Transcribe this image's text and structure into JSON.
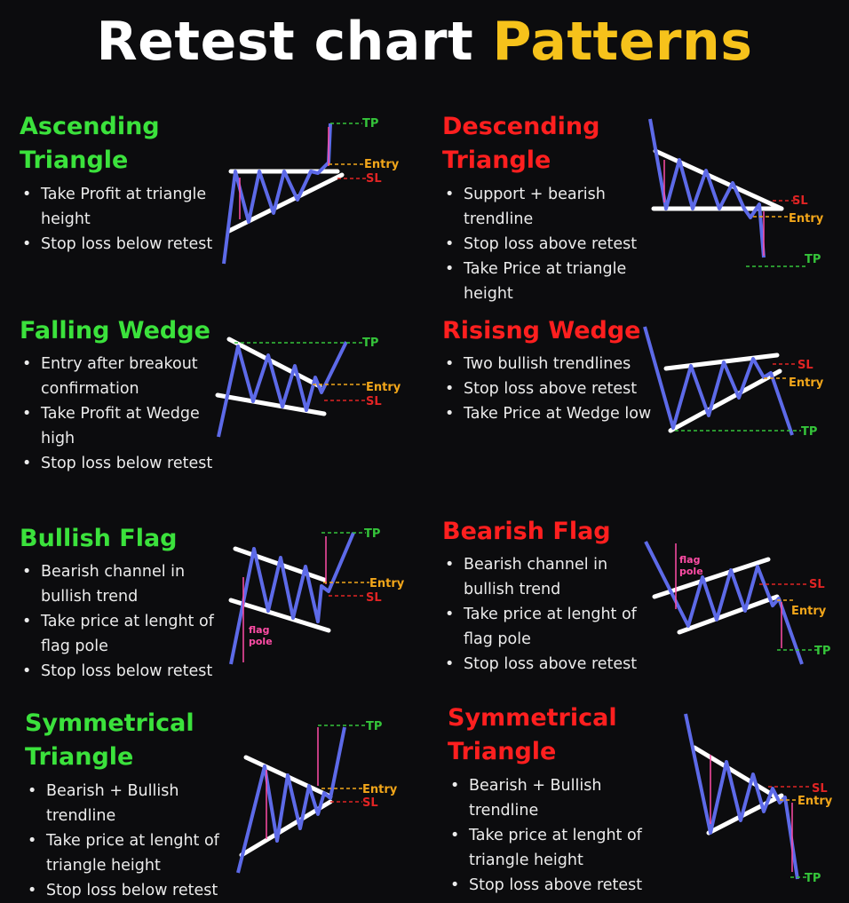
{
  "title": {
    "part1": "Retest chart",
    "part2": "Patterns"
  },
  "colors": {
    "background": "#0c0c0e",
    "title_white": "#ffffff",
    "title_yellow": "#f6c21b",
    "bullish_title": "#3be23c",
    "bearish_title": "#ff1f1f",
    "price_line": "#5d6ae8",
    "trendline": "#ffffff",
    "tp": "#35c43a",
    "entry": "#f2a61a",
    "sl": "#e02424",
    "measure_arrow": "#ff4da6"
  },
  "labels": {
    "tp": "TP",
    "entry": "Entry",
    "sl": "SL",
    "flag_pole_1": "flag",
    "flag_pole_2": "pole"
  },
  "patterns": [
    {
      "name_line1": "Ascending",
      "name_line2": "Triangle",
      "bias": "bullish",
      "bullets": [
        "Take Profit at triangle height",
        "Stop loss below retest"
      ]
    },
    {
      "name_line1": "Descending",
      "name_line2": "Triangle",
      "bias": "bearish",
      "bullets": [
        "Support + bearish trendline",
        "Stop loss above retest",
        "Take Price at triangle height"
      ]
    },
    {
      "name_line1": "Falling Wedge",
      "name_line2": "",
      "bias": "bullish",
      "bullets": [
        "Entry after breakout confirmation",
        "Take Profit at Wedge high",
        "Stop loss below retest"
      ]
    },
    {
      "name_line1": "Risisng Wedge",
      "name_line2": "",
      "bias": "bearish",
      "bullets": [
        "Two bullish trendlines",
        "Stop loss above retest",
        "Take Price at Wedge low"
      ]
    },
    {
      "name_line1": "Bullish Flag",
      "name_line2": "",
      "bias": "bullish",
      "bullets": [
        "Bearish channel in bullish trend",
        "Take price at lenght of flag pole",
        "Stop loss below retest"
      ]
    },
    {
      "name_line1": "Bearish Flag",
      "name_line2": "",
      "bias": "bearish",
      "bullets": [
        "Bearish channel in bullish trend",
        "Take price at lenght of flag pole",
        "Stop loss above retest"
      ]
    },
    {
      "name_line1": "Symmetrical",
      "name_line2": "Triangle",
      "bias": "bullish",
      "bullets": [
        "Bearish + Bullish trendline",
        "Take price at lenght of triangle height",
        "Stop loss below retest"
      ]
    },
    {
      "name_line1": "Symmetrical",
      "name_line2": "Triangle",
      "bias": "bearish",
      "bullets": [
        "Bearish + Bullish trendline",
        "Take price at lenght of triangle height",
        "Stop loss above retest"
      ]
    }
  ]
}
